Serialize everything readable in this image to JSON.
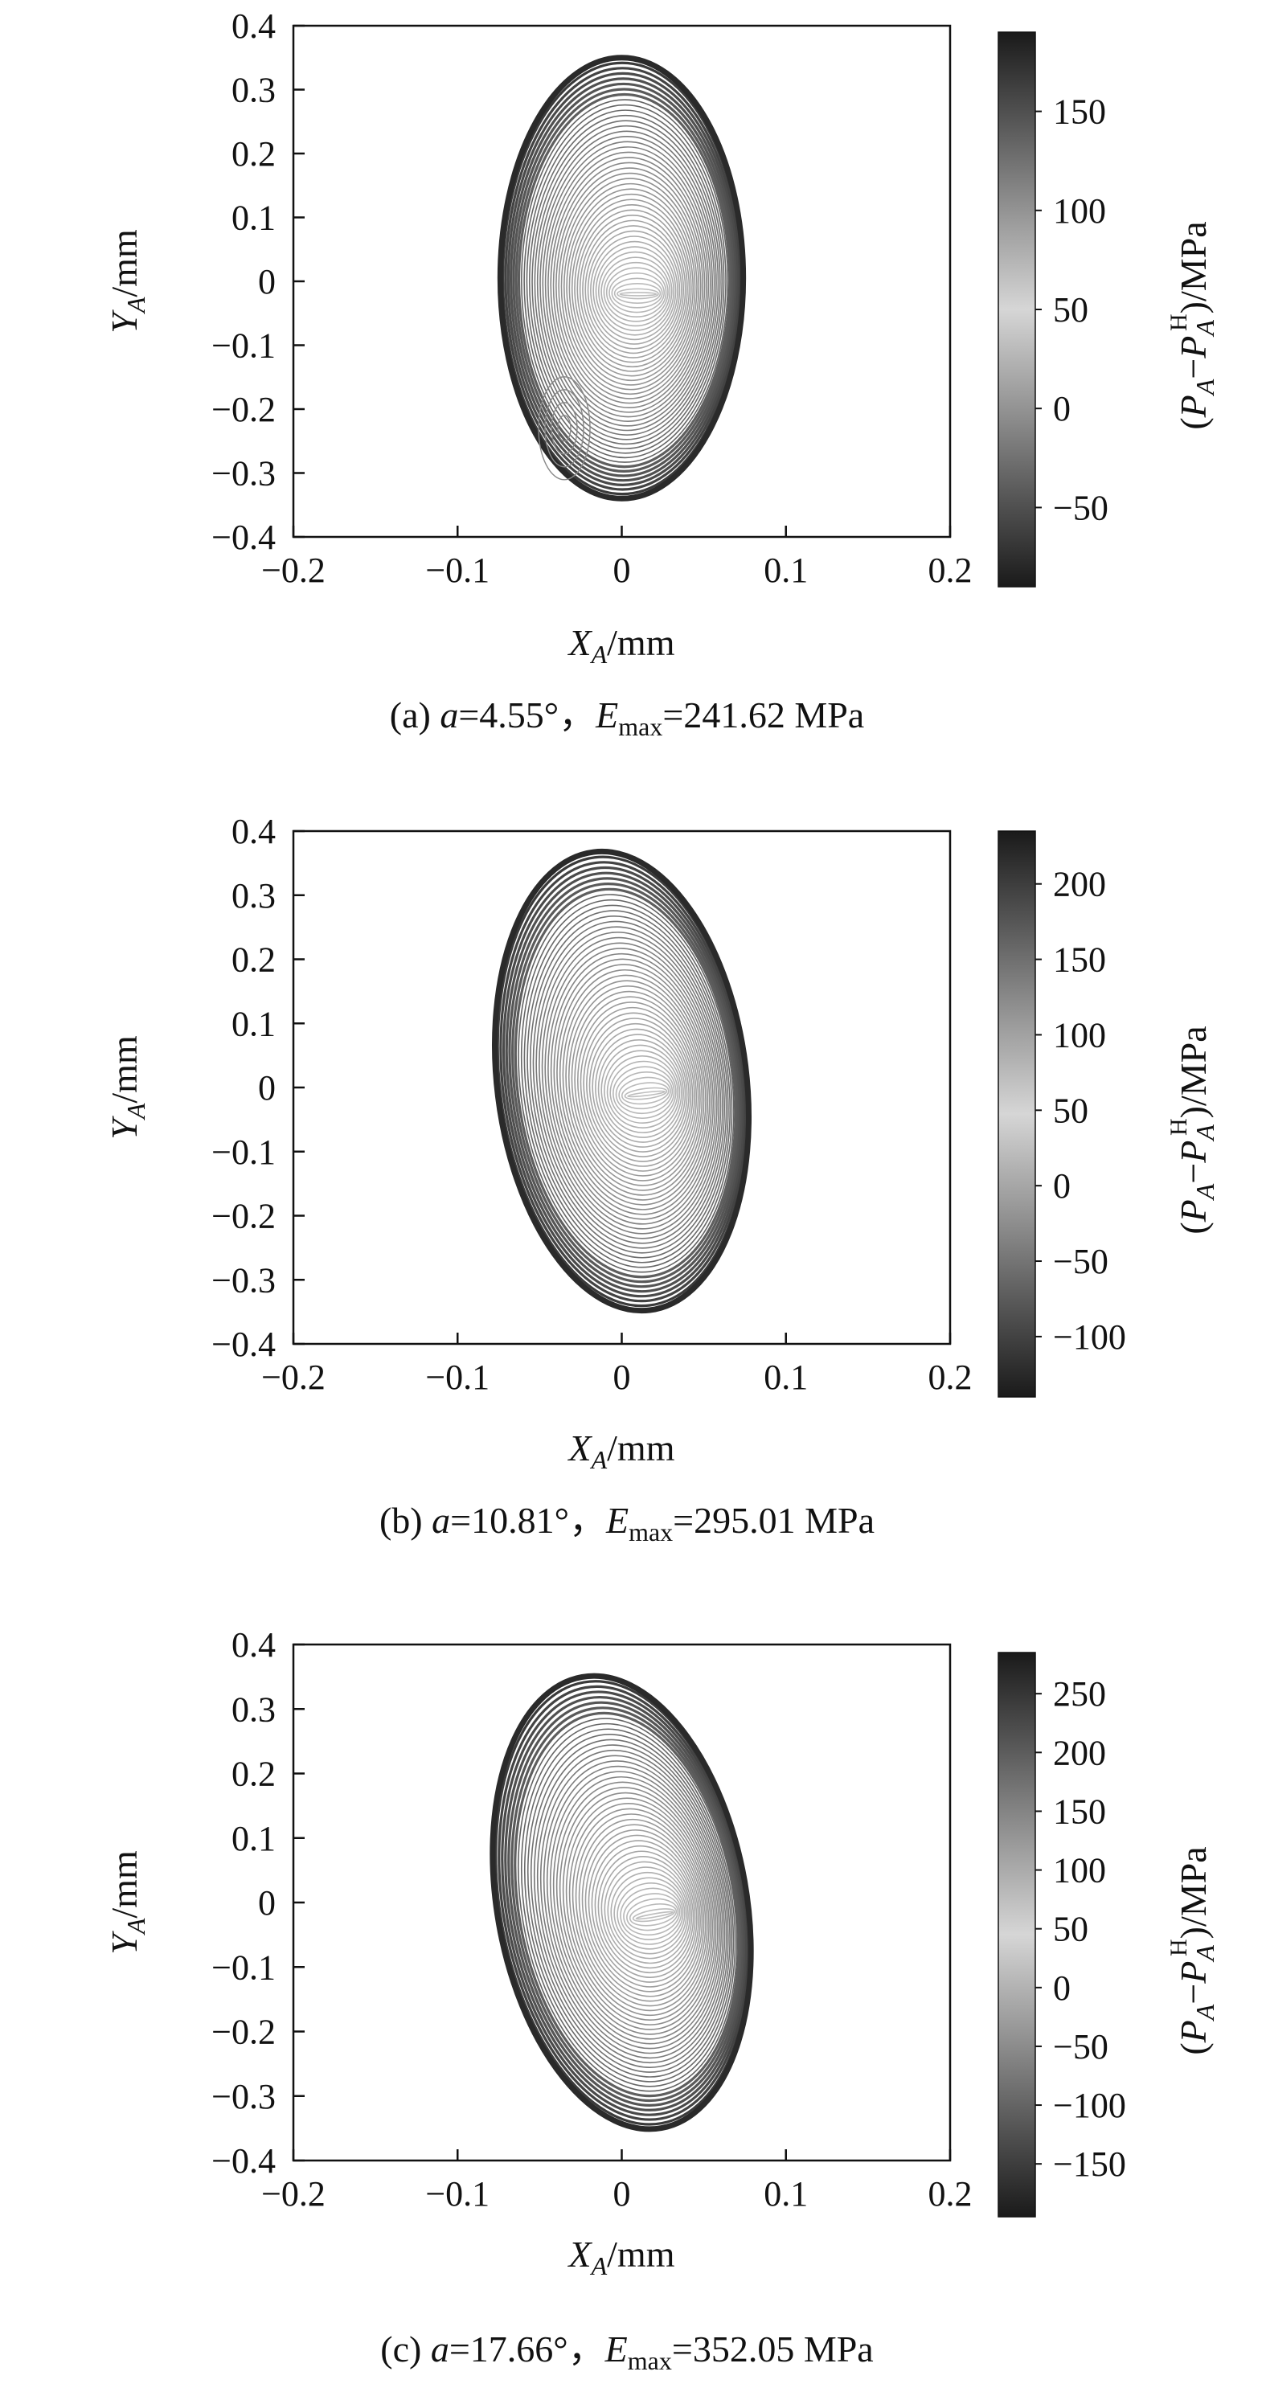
{
  "chart_data": [
    {
      "type": "heatmap",
      "caption": {
        "prefix": "(a) ",
        "var": "a",
        "alpha": "=4.55°",
        "sep": "，",
        "E": "E",
        "sub": "max",
        "evalue": "=241.62 MPa"
      },
      "xlabel": {
        "var": "X",
        "sub": "A",
        "unit": "/mm"
      },
      "ylabel": {
        "var": "Y",
        "sub": "A",
        "unit": "/mm"
      },
      "colorbar_label": {
        "open": "(",
        "p1": "P",
        "s1": "A",
        "minus": "−",
        "p2": "P",
        "s2": "A",
        "sup2": "H",
        "close": ")/MPa"
      },
      "xlim": [
        -0.2,
        0.2
      ],
      "ylim": [
        -0.4,
        0.4
      ],
      "xticks": [
        -0.2,
        -0.1,
        0,
        0.1,
        0.2
      ],
      "xtick_labels": [
        "−0.2",
        "−0.1",
        "0",
        "0.1",
        "0.2"
      ],
      "yticks": [
        0.4,
        0.3,
        0.2,
        0.1,
        0,
        -0.1,
        -0.2,
        -0.3,
        -0.4
      ],
      "ytick_labels": [
        "0.4",
        "0.3",
        "0.2",
        "0.1",
        "0",
        "−0.1",
        "−0.2",
        "−0.3",
        "−0.4"
      ],
      "colorbar_range": [
        -90,
        190
      ],
      "colorbar_ticks": [
        150,
        100,
        50,
        0,
        -50
      ],
      "colorbar_tick_labels": [
        "150",
        "100",
        "50",
        "0",
        "−50"
      ],
      "contact_ellipse": {
        "center": [
          0,
          0.005
        ],
        "semi_axis_x": 0.074,
        "semi_axis_y": 0.345,
        "tilt_deg": 0
      },
      "interior_saddle_point": [
        0.01,
        -0.02
      ],
      "low_pressure_center": [
        -0.035,
        -0.23
      ],
      "colormap": [
        "#1a1a1a",
        "#d6d6d6",
        "#1a1a1a"
      ],
      "grid": false
    },
    {
      "type": "heatmap",
      "caption": {
        "prefix": "(b) ",
        "var": "a",
        "alpha": "=10.81°",
        "sep": "，",
        "E": "E",
        "sub": "max",
        "evalue": "=295.01 MPa"
      },
      "xlabel": {
        "var": "X",
        "sub": "A",
        "unit": "/mm"
      },
      "ylabel": {
        "var": "Y",
        "sub": "A",
        "unit": "/mm"
      },
      "colorbar_label": {
        "open": "(",
        "p1": "P",
        "s1": "A",
        "minus": "−",
        "p2": "P",
        "s2": "A",
        "sup2": "H",
        "close": ")/MPa"
      },
      "xlim": [
        -0.2,
        0.2
      ],
      "ylim": [
        -0.4,
        0.4
      ],
      "xticks": [
        -0.2,
        -0.1,
        0,
        0.1,
        0.2
      ],
      "xtick_labels": [
        "−0.2",
        "−0.1",
        "0",
        "0.1",
        "0.2"
      ],
      "yticks": [
        0.4,
        0.3,
        0.2,
        0.1,
        0,
        -0.1,
        -0.2,
        -0.3,
        -0.4
      ],
      "ytick_labels": [
        "0.4",
        "0.3",
        "0.2",
        "0.1",
        "0",
        "−0.1",
        "−0.2",
        "−0.3",
        "−0.4"
      ],
      "colorbar_range": [
        -140,
        235
      ],
      "colorbar_ticks": [
        200,
        150,
        100,
        50,
        0,
        -50,
        -100
      ],
      "colorbar_tick_labels": [
        "200",
        "150",
        "100",
        "50",
        "0",
        "−50",
        "−100"
      ],
      "contact_ellipse": {
        "center": [
          0,
          0.01
        ],
        "semi_axis_x": 0.076,
        "semi_axis_y": 0.36,
        "tilt_deg": -7
      },
      "interior_saddle_point": [
        0.015,
        -0.01
      ],
      "colormap": [
        "#1a1a1a",
        "#d6d6d6",
        "#1a1a1a"
      ],
      "grid": false
    },
    {
      "type": "heatmap",
      "caption": {
        "prefix": "(c) ",
        "var": "a",
        "alpha": "=17.66°",
        "sep": "，",
        "E": "E",
        "sub": "max",
        "evalue": "=352.05 MPa"
      },
      "xlabel": {
        "var": "X",
        "sub": "A",
        "unit": "/mm"
      },
      "ylabel": {
        "var": "Y",
        "sub": "A",
        "unit": "/mm"
      },
      "colorbar_label": {
        "open": "(",
        "p1": "P",
        "s1": "A",
        "minus": "−",
        "p2": "P",
        "s2": "A",
        "sup2": "H",
        "close": ")/MPa"
      },
      "xlim": [
        -0.2,
        0.2
      ],
      "ylim": [
        -0.4,
        0.4
      ],
      "xticks": [
        -0.2,
        -0.1,
        0,
        0.1,
        0.2
      ],
      "xtick_labels": [
        "−0.2",
        "−0.1",
        "0",
        "0.1",
        "0.2"
      ],
      "yticks": [
        0.4,
        0.3,
        0.2,
        0.1,
        0,
        -0.1,
        -0.2,
        -0.3,
        -0.4
      ],
      "ytick_labels": [
        "0.4",
        "0.3",
        "0.2",
        "0.1",
        "0",
        "−0.1",
        "−0.2",
        "−0.3",
        "−0.4"
      ],
      "colorbar_range": [
        -195,
        285
      ],
      "colorbar_ticks": [
        250,
        200,
        150,
        100,
        50,
        0,
        -50,
        -100,
        -150
      ],
      "colorbar_tick_labels": [
        "250",
        "200",
        "150",
        "100",
        "50",
        "0",
        "−50",
        "−100",
        "−150"
      ],
      "contact_ellipse": {
        "center": [
          0,
          0.0
        ],
        "semi_axis_x": 0.076,
        "semi_axis_y": 0.355,
        "tilt_deg": -10
      },
      "interior_saddle_point": [
        0.02,
        -0.02
      ],
      "colormap": [
        "#1a1a1a",
        "#d6d6d6",
        "#1a1a1a"
      ],
      "grid": false
    }
  ]
}
